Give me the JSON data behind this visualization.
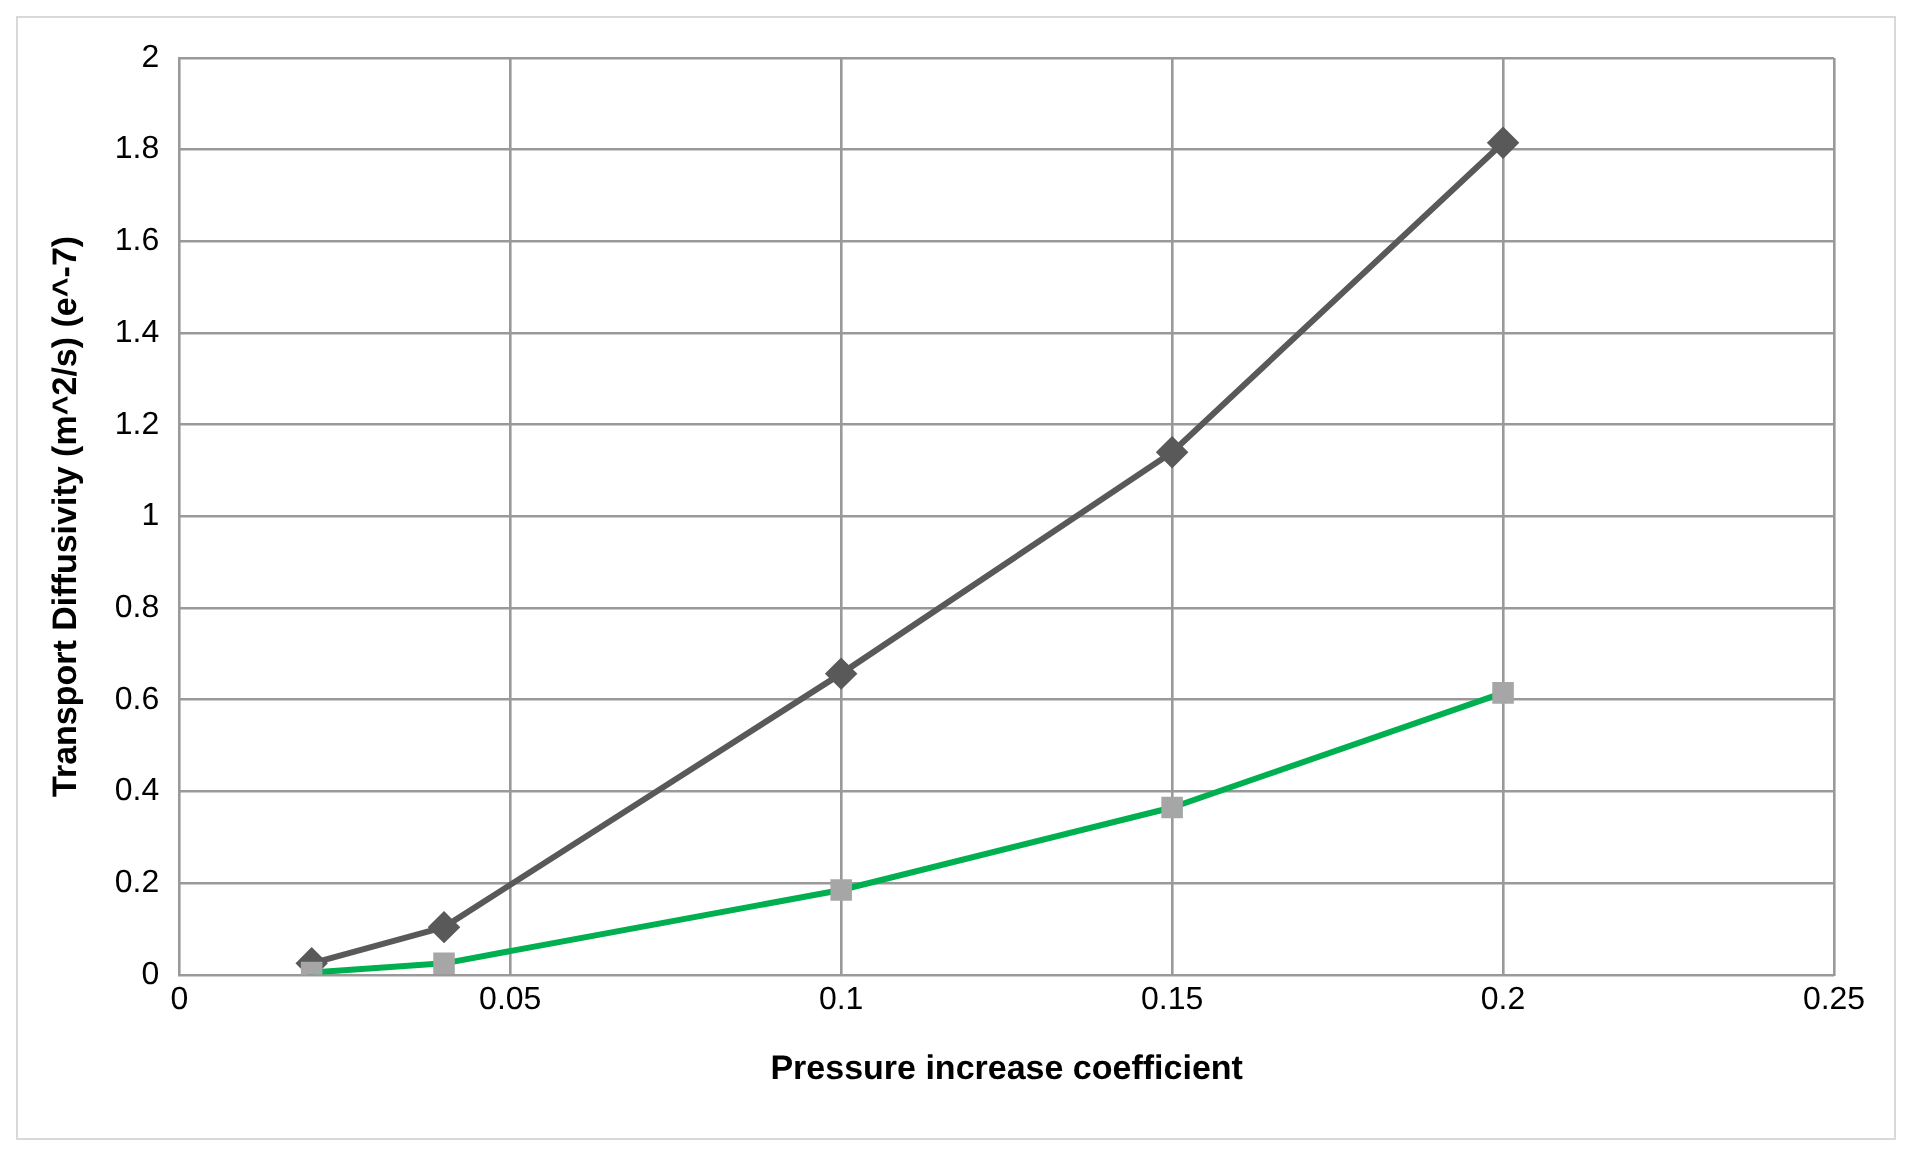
{
  "chart_data": {
    "type": "line",
    "xlabel": "Pressure increase coefficient",
    "ylabel": "Transport Diffusivity (m^2/s) (e^-7)",
    "x": [
      0.02,
      0.04,
      0.1,
      0.15,
      0.2
    ],
    "series": [
      {
        "color": "#595959",
        "marker": "diamond",
        "values": [
          0.025,
          0.104,
          0.657,
          1.14,
          1.815
        ]
      },
      {
        "color": "#00b050",
        "colors": [
          "#a6a6a6",
          "#a6a6a6",
          "#a6a6a6",
          "#a6a6a6",
          "#a6a6a6"
        ],
        "marker": "square",
        "values": [
          0.005,
          0.025,
          0.185,
          0.365,
          0.615
        ]
      }
    ],
    "xlim": [
      0,
      0.25
    ],
    "xticks": [
      0,
      0.05,
      0.1,
      0.15,
      0.2,
      0.25
    ],
    "ylim": [
      0,
      2
    ],
    "yticks": [
      0,
      0.2,
      0.4,
      0.6,
      0.8,
      1,
      1.2,
      1.4,
      1.6,
      1.8,
      2
    ],
    "grid": true,
    "legend": false
  }
}
